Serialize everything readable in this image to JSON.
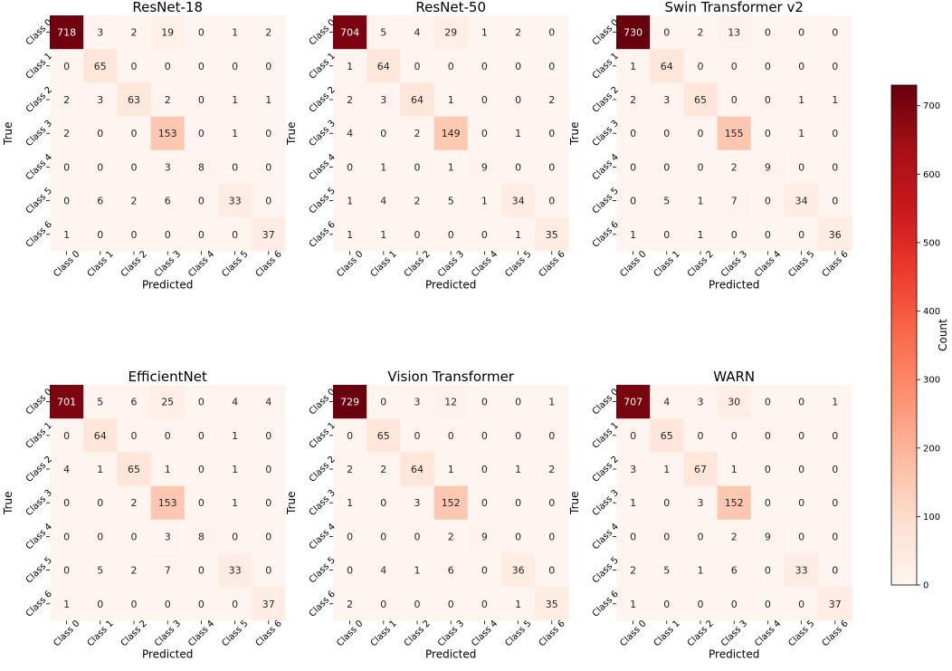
{
  "chart_data": {
    "type": "heatmap",
    "class_labels": [
      "Class 0",
      "Class 1",
      "Class 2",
      "Class 3",
      "Class 4",
      "Class 5",
      "Class 6"
    ],
    "xlabel": "Predicted",
    "ylabel": "True",
    "colormap": "Reds",
    "colorbar": {
      "label": "Count",
      "vmin": 0,
      "vmax": 730,
      "ticks": [
        0,
        100,
        200,
        300,
        400,
        500,
        600,
        700
      ],
      "color_low": "#fff5f0",
      "color_high": "#67000d"
    },
    "panels": [
      {
        "title": "ResNet-18",
        "matrix": [
          [
            718,
            3,
            2,
            19,
            0,
            1,
            2
          ],
          [
            0,
            65,
            0,
            0,
            0,
            0,
            0
          ],
          [
            2,
            3,
            63,
            2,
            0,
            1,
            1
          ],
          [
            2,
            0,
            0,
            153,
            0,
            1,
            0
          ],
          [
            0,
            0,
            0,
            3,
            8,
            0,
            0
          ],
          [
            0,
            6,
            2,
            6,
            0,
            33,
            0
          ],
          [
            1,
            0,
            0,
            0,
            0,
            0,
            37
          ]
        ]
      },
      {
        "title": "ResNet-50",
        "matrix": [
          [
            704,
            5,
            4,
            29,
            1,
            2,
            0
          ],
          [
            1,
            64,
            0,
            0,
            0,
            0,
            0
          ],
          [
            2,
            3,
            64,
            1,
            0,
            0,
            2
          ],
          [
            4,
            0,
            2,
            149,
            0,
            1,
            0
          ],
          [
            0,
            1,
            0,
            1,
            9,
            0,
            0
          ],
          [
            1,
            4,
            2,
            5,
            1,
            34,
            0
          ],
          [
            1,
            1,
            0,
            0,
            0,
            1,
            35
          ]
        ]
      },
      {
        "title": "Swin Transformer v2",
        "matrix": [
          [
            730,
            0,
            2,
            13,
            0,
            0,
            0
          ],
          [
            1,
            64,
            0,
            0,
            0,
            0,
            0
          ],
          [
            2,
            3,
            65,
            0,
            0,
            1,
            1
          ],
          [
            0,
            0,
            0,
            155,
            0,
            1,
            0
          ],
          [
            0,
            0,
            0,
            2,
            9,
            0,
            0
          ],
          [
            0,
            5,
            1,
            7,
            0,
            34,
            0
          ],
          [
            1,
            0,
            1,
            0,
            0,
            0,
            36
          ]
        ]
      },
      {
        "title": "EfficientNet",
        "matrix": [
          [
            701,
            5,
            6,
            25,
            0,
            4,
            4
          ],
          [
            0,
            64,
            0,
            0,
            0,
            1,
            0
          ],
          [
            4,
            1,
            65,
            1,
            0,
            1,
            0
          ],
          [
            0,
            0,
            2,
            153,
            0,
            1,
            0
          ],
          [
            0,
            0,
            0,
            3,
            8,
            0,
            0
          ],
          [
            0,
            5,
            2,
            7,
            0,
            33,
            0
          ],
          [
            1,
            0,
            0,
            0,
            0,
            0,
            37
          ]
        ]
      },
      {
        "title": "Vision Transformer",
        "matrix": [
          [
            729,
            0,
            3,
            12,
            0,
            0,
            1
          ],
          [
            0,
            65,
            0,
            0,
            0,
            0,
            0
          ],
          [
            2,
            2,
            64,
            1,
            0,
            1,
            2
          ],
          [
            1,
            0,
            3,
            152,
            0,
            0,
            0
          ],
          [
            0,
            0,
            0,
            2,
            9,
            0,
            0
          ],
          [
            0,
            4,
            1,
            6,
            0,
            36,
            0
          ],
          [
            2,
            0,
            0,
            0,
            0,
            1,
            35
          ]
        ]
      },
      {
        "title": "WARN",
        "matrix": [
          [
            707,
            4,
            3,
            30,
            0,
            0,
            1
          ],
          [
            0,
            65,
            0,
            0,
            0,
            0,
            0
          ],
          [
            3,
            1,
            67,
            1,
            0,
            0,
            0
          ],
          [
            1,
            0,
            3,
            152,
            0,
            0,
            0
          ],
          [
            0,
            0,
            0,
            2,
            9,
            0,
            0
          ],
          [
            2,
            5,
            1,
            6,
            0,
            33,
            0
          ],
          [
            1,
            0,
            0,
            0,
            0,
            0,
            37
          ]
        ]
      }
    ]
  }
}
